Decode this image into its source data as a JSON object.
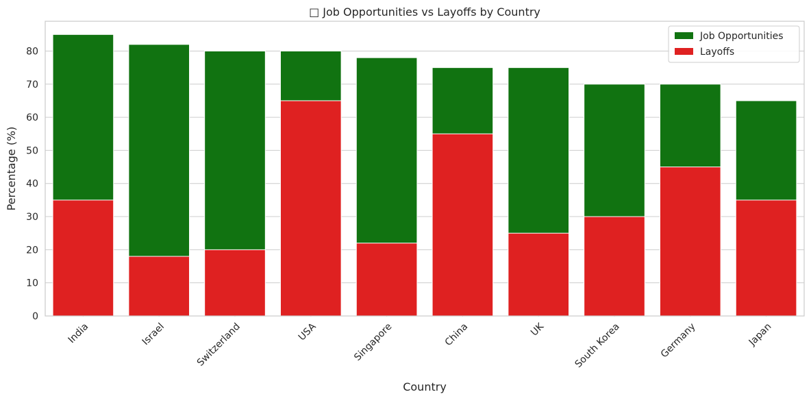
{
  "chart_data": {
    "type": "bar",
    "title": "□ Job Opportunities vs Layoffs by Country",
    "xlabel": "Country",
    "ylabel": "Percentage (%)",
    "ylim": [
      0,
      89
    ],
    "yticks": [
      0,
      10,
      20,
      30,
      40,
      50,
      60,
      70,
      80
    ],
    "ytick_labels": [
      "0",
      "10",
      "20",
      "30",
      "40",
      "50",
      "60",
      "70",
      "80"
    ],
    "grid": true,
    "legend_position": "top-right",
    "categories": [
      "India",
      "Israel",
      "Switzerland",
      "USA",
      "Singapore",
      "China",
      "UK",
      "South Korea",
      "Germany",
      "Japan"
    ],
    "series": [
      {
        "name": "Job Opportunities",
        "color": "#117311",
        "values": [
          85,
          82,
          80,
          80,
          78,
          75,
          75,
          70,
          70,
          65
        ]
      },
      {
        "name": "Layoffs",
        "color": "#df2121",
        "values": [
          35,
          18,
          20,
          65,
          22,
          55,
          25,
          30,
          45,
          35
        ]
      }
    ]
  }
}
